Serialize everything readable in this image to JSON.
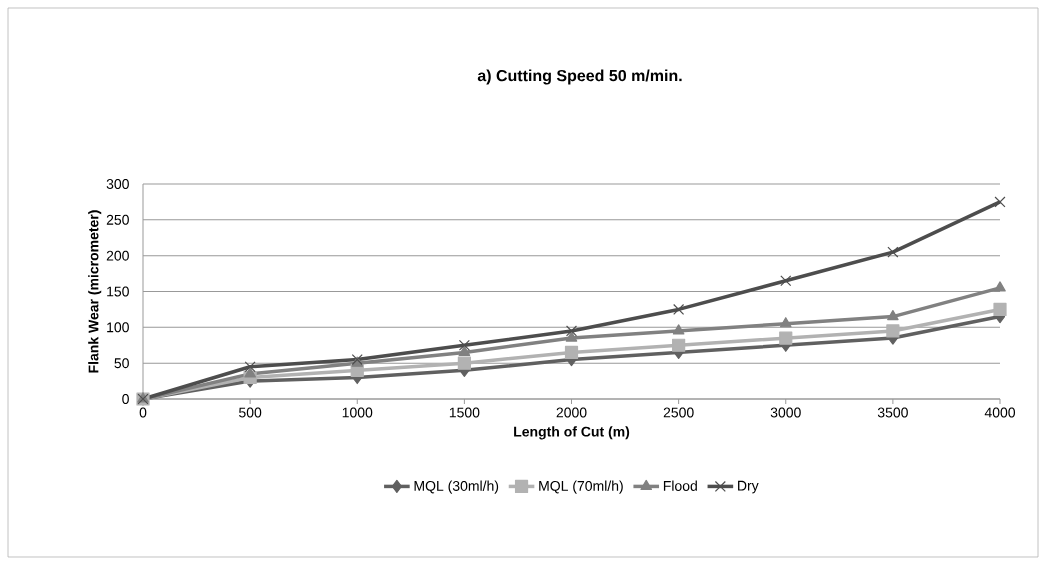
{
  "chart_data": {
    "type": "line",
    "title": "a) Cutting Speed 50 m/min.",
    "xlabel": "Length of Cut (m)",
    "ylabel": "Flank Wear (micrometer)",
    "x": [
      0,
      500,
      1000,
      1500,
      2000,
      2500,
      3000,
      3500,
      4000
    ],
    "series": [
      {
        "name": "MQL (30ml/h)",
        "color": "#606060",
        "marker": "diamond",
        "values": [
          0,
          25,
          30,
          40,
          55,
          65,
          75,
          85,
          115
        ]
      },
      {
        "name": "MQL (70ml/h)",
        "color": "#b2b2b2",
        "marker": "square",
        "values": [
          0,
          30,
          40,
          50,
          65,
          75,
          85,
          95,
          125
        ]
      },
      {
        "name": "Flood",
        "color": "#818181",
        "marker": "triangle",
        "values": [
          0,
          35,
          50,
          65,
          85,
          95,
          105,
          115,
          155
        ]
      },
      {
        "name": "Dry",
        "color": "#4d4d4d",
        "marker": "cross",
        "values": [
          0,
          45,
          55,
          75,
          95,
          125,
          165,
          205,
          275
        ]
      }
    ],
    "xlim": [
      0,
      4000
    ],
    "ylim": [
      0,
      300
    ],
    "xticks": [
      0,
      500,
      1000,
      1500,
      2000,
      2500,
      3000,
      3500,
      4000
    ],
    "yticks": [
      0,
      50,
      100,
      150,
      200,
      250,
      300
    ],
    "grid": "y",
    "legend": "bottom",
    "line_style": "solid"
  }
}
